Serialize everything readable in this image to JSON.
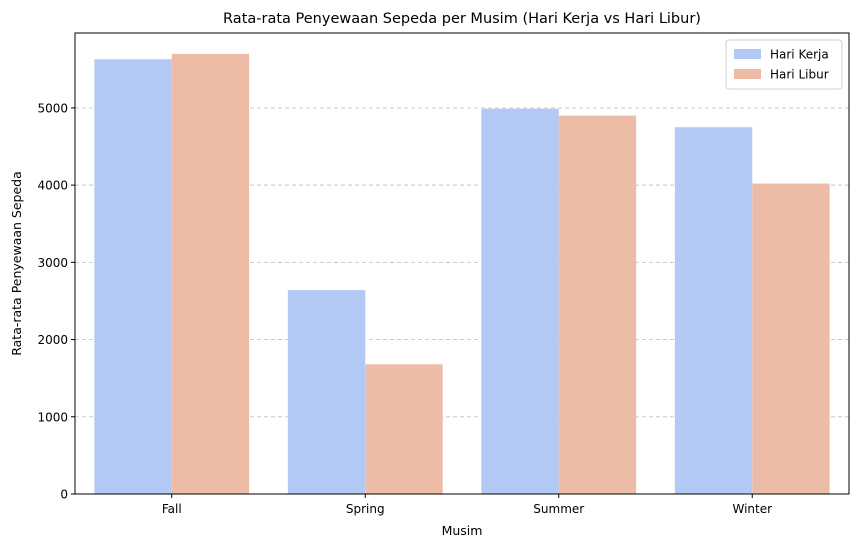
{
  "chart_data": {
    "type": "bar",
    "title": "Rata-rata Penyewaan Sepeda per Musim (Hari Kerja vs Hari Libur)",
    "xlabel": "Musim",
    "ylabel": "Rata-rata Penyewaan Sepeda",
    "categories": [
      "Fall",
      "Spring",
      "Summer",
      "Winter"
    ],
    "series": [
      {
        "name": "Hari Kerja",
        "color": "#b3c9f5",
        "values": [
          5630,
          2640,
          4990,
          4750
        ]
      },
      {
        "name": "Hari Libur",
        "color": "#ecbca6",
        "values": [
          5700,
          1680,
          4900,
          4020
        ]
      }
    ],
    "ylim": [
      0,
      5970
    ],
    "yticks": [
      0,
      1000,
      2000,
      3000,
      4000,
      5000
    ],
    "grid": "y-dashed",
    "legend_position": "top-right"
  }
}
